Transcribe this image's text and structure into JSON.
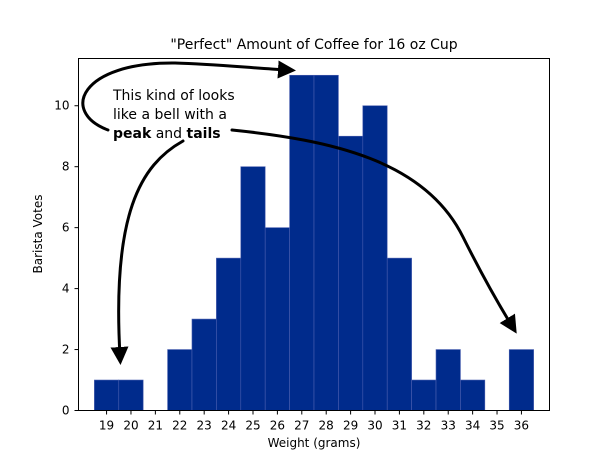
{
  "chart_data": {
    "type": "bar",
    "title": "\"Perfect\" Amount of Coffee for 16 oz Cup",
    "xlabel": "Weight (grams)",
    "ylabel": "Barista Votes",
    "categories": [
      19,
      20,
      21,
      22,
      23,
      24,
      25,
      26,
      27,
      28,
      29,
      30,
      31,
      32,
      33,
      34,
      35,
      36
    ],
    "values": [
      1,
      1,
      0,
      2,
      3,
      5,
      8,
      6,
      11,
      11,
      9,
      10,
      5,
      1,
      2,
      1,
      0,
      2
    ],
    "xlim": [
      17.85,
      37.15
    ],
    "ylim": [
      0,
      11.55
    ],
    "yticks": [
      0,
      2,
      4,
      6,
      8,
      10
    ],
    "grid": false,
    "bar_color": "#002b8c",
    "annotation": {
      "line1": "This kind of looks",
      "line2": "like a bell with a",
      "peak_word": "peak",
      "and_word": " and ",
      "tails_word": "tails"
    }
  }
}
